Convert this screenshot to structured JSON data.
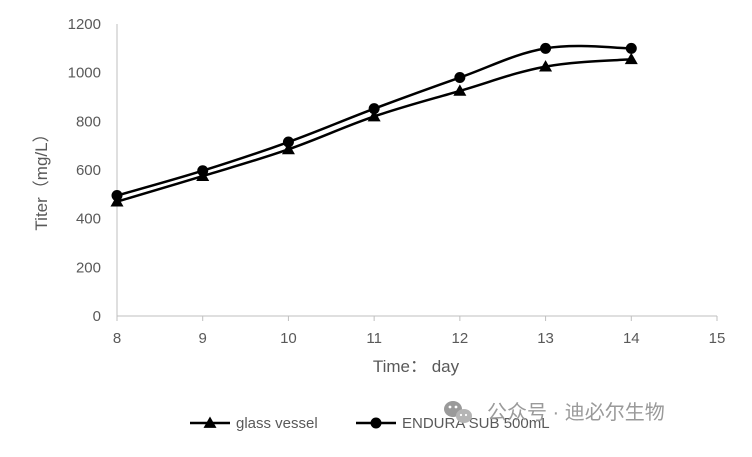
{
  "chart_data": {
    "type": "line",
    "x": [
      8,
      9,
      10,
      11,
      12,
      13,
      14
    ],
    "series": [
      {
        "name": "glass vessel",
        "marker": "triangle",
        "values": [
          470,
          575,
          685,
          820,
          925,
          1025,
          1055
        ]
      },
      {
        "name": "ENDURA SUB 500mL",
        "marker": "circle",
        "values": [
          495,
          597,
          715,
          852,
          980,
          1100,
          1100
        ]
      }
    ],
    "xlabel": "Time： day",
    "ylabel": "Titer（mg/L）",
    "xlim": [
      8,
      15
    ],
    "ylim": [
      0,
      1200
    ],
    "xticks": [
      "8",
      "9",
      "10",
      "11",
      "12",
      "13",
      "14",
      "15"
    ],
    "yticks": [
      "0",
      "200",
      "400",
      "600",
      "800",
      "1000",
      "1200"
    ],
    "grid": false,
    "legend_position": "bottom",
    "line_color": "#000000"
  },
  "watermark": {
    "icon": "wechat-icon",
    "text": "公众号 · 迪必尔生物"
  }
}
